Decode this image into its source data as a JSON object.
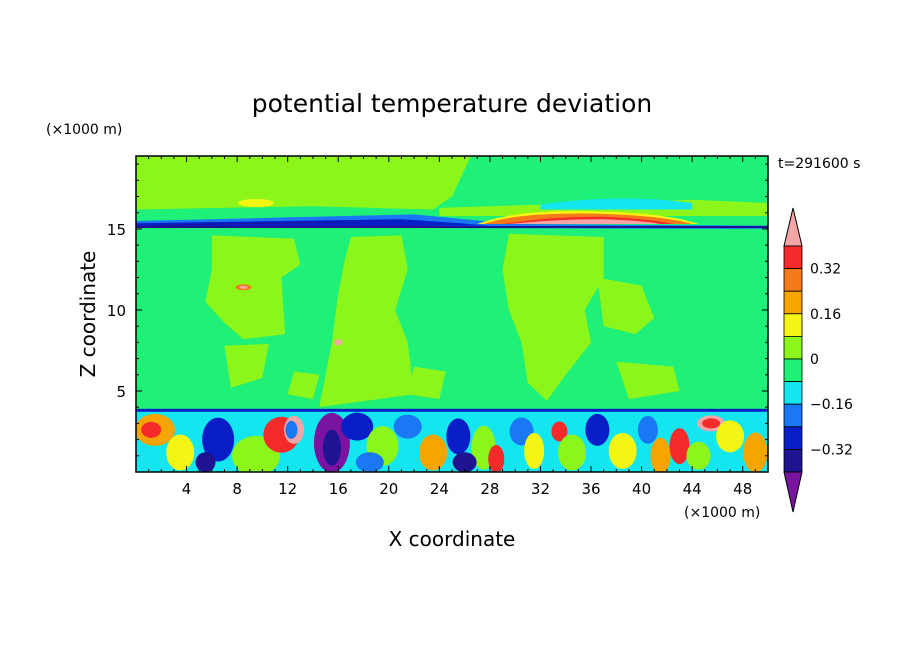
{
  "chart_data": {
    "type": "heatmap",
    "title": "potential temperature deviation",
    "xlabel": "X coordinate",
    "ylabel": "Z coordinate",
    "x_unit": "(×1000 m)",
    "y_unit": "(×1000 m)",
    "time_label": "t=291600 s",
    "xlim": [
      0,
      50
    ],
    "ylim": [
      0,
      19.5
    ],
    "x_ticks": [
      4,
      8,
      12,
      16,
      20,
      24,
      28,
      32,
      36,
      40,
      44,
      48
    ],
    "y_ticks": [
      5,
      10,
      15
    ],
    "colorbar": {
      "labels": [
        {
          "value": 0.32,
          "text": "0.32"
        },
        {
          "value": 0.16,
          "text": "0.16"
        },
        {
          "value": 0,
          "text": "0"
        },
        {
          "value": -0.16,
          "text": "−0.16"
        },
        {
          "value": -0.32,
          "text": "−0.32"
        }
      ],
      "levels": [
        {
          "min": 0.4,
          "max": null,
          "color": "#f4a6a6"
        },
        {
          "min": 0.32,
          "max": 0.4,
          "color": "#f52a2a"
        },
        {
          "min": 0.24,
          "max": 0.32,
          "color": "#f57a1a"
        },
        {
          "min": 0.16,
          "max": 0.24,
          "color": "#f5a400"
        },
        {
          "min": 0.08,
          "max": 0.16,
          "color": "#f5f514"
        },
        {
          "min": 0,
          "max": 0.08,
          "color": "#8cf51a"
        },
        {
          "min": -0.08,
          "max": 0,
          "color": "#1ef078"
        },
        {
          "min": -0.16,
          "max": -0.08,
          "color": "#14e6f0"
        },
        {
          "min": -0.24,
          "max": -0.16,
          "color": "#1a78f5"
        },
        {
          "min": -0.32,
          "max": -0.24,
          "color": "#0a1ec8"
        },
        {
          "min": -0.4,
          "max": -0.32,
          "color": "#1e1491"
        },
        {
          "min": null,
          "max": -0.4,
          "color": "#7814a0"
        }
      ]
    },
    "background_color": "#1ef078",
    "features": [
      {
        "desc": "positive band near z=17",
        "x": [
          0,
          22
        ],
        "z": [
          16.5,
          19.5
        ],
        "value": 0.04
      },
      {
        "desc": "negative layer",
        "x": [
          0,
          50
        ],
        "z": [
          15.1,
          15.6
        ],
        "value": -0.28
      },
      {
        "desc": "warm lens",
        "x": [
          28,
          42
        ],
        "z": [
          15.2,
          15.9
        ],
        "value": 0.36
      },
      {
        "desc": "positive plume",
        "x": [
          5,
          13
        ],
        "z": [
          7,
          14.5
        ],
        "value": 0.04
      },
      {
        "desc": "positive plume",
        "x": [
          14,
          22
        ],
        "z": [
          4,
          14.5
        ],
        "value": 0.04
      },
      {
        "desc": "positive plume",
        "x": [
          29,
          40
        ],
        "z": [
          4,
          14.5
        ],
        "value": 0.04
      },
      {
        "desc": "turbulent boundary layer",
        "x": [
          0,
          50
        ],
        "z": [
          0,
          3.8
        ],
        "value": 0
      }
    ]
  }
}
